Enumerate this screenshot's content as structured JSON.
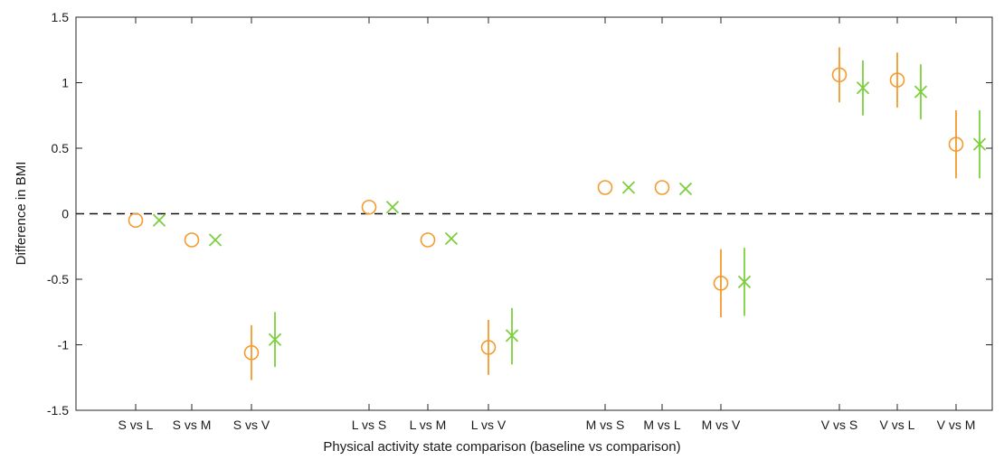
{
  "chart_data": {
    "type": "scatter",
    "title": "",
    "xlabel": "Physical activity state comparison (baseline vs comparison)",
    "ylabel": "Difference in BMI",
    "ylim": [
      -1.5,
      1.5
    ],
    "yticks": [
      -1.5,
      -1,
      -0.5,
      0,
      0.5,
      1,
      1.5
    ],
    "ytick_labels": [
      "-1.5",
      "-1",
      "-0.5",
      "0",
      "0.5",
      "1",
      "1.5"
    ],
    "grid": false,
    "reference_line": {
      "y": 0,
      "style": "dashed"
    },
    "categories": [
      "S vs L",
      "S vs M",
      "S vs V",
      "L vs S",
      "L vs M",
      "L vs V",
      "M vs S",
      "M vs L",
      "M vs V",
      "V vs S",
      "V vs L",
      "V vs M"
    ],
    "category_groups": [
      [
        0,
        1,
        2
      ],
      [
        3,
        4,
        5
      ],
      [
        6,
        7,
        8
      ],
      [
        9,
        10,
        11
      ]
    ],
    "series": [
      {
        "marker": "circle",
        "color": "#f59a2e",
        "values": [
          -0.05,
          -0.2,
          -1.06,
          0.05,
          -0.2,
          -1.02,
          0.2,
          0.2,
          -0.53,
          1.06,
          1.02,
          0.53
        ],
        "lower": [
          -0.05,
          -0.2,
          -1.27,
          0.05,
          -0.2,
          -1.23,
          0.2,
          0.2,
          -0.79,
          0.85,
          0.81,
          0.27
        ],
        "upper": [
          -0.05,
          -0.2,
          -0.85,
          0.05,
          -0.2,
          -0.81,
          0.2,
          0.2,
          -0.27,
          1.27,
          1.23,
          0.79
        ]
      },
      {
        "marker": "x",
        "color": "#7ccf3c",
        "values": [
          -0.05,
          -0.2,
          -0.96,
          0.05,
          -0.19,
          -0.93,
          0.2,
          0.19,
          -0.52,
          0.96,
          0.93,
          0.53
        ],
        "lower": [
          -0.05,
          -0.2,
          -1.17,
          0.05,
          -0.19,
          -1.15,
          0.2,
          0.19,
          -0.78,
          0.75,
          0.72,
          0.27
        ],
        "upper": [
          -0.05,
          -0.2,
          -0.75,
          0.05,
          -0.19,
          -0.72,
          0.2,
          0.19,
          -0.26,
          1.17,
          1.14,
          0.79
        ]
      }
    ]
  }
}
